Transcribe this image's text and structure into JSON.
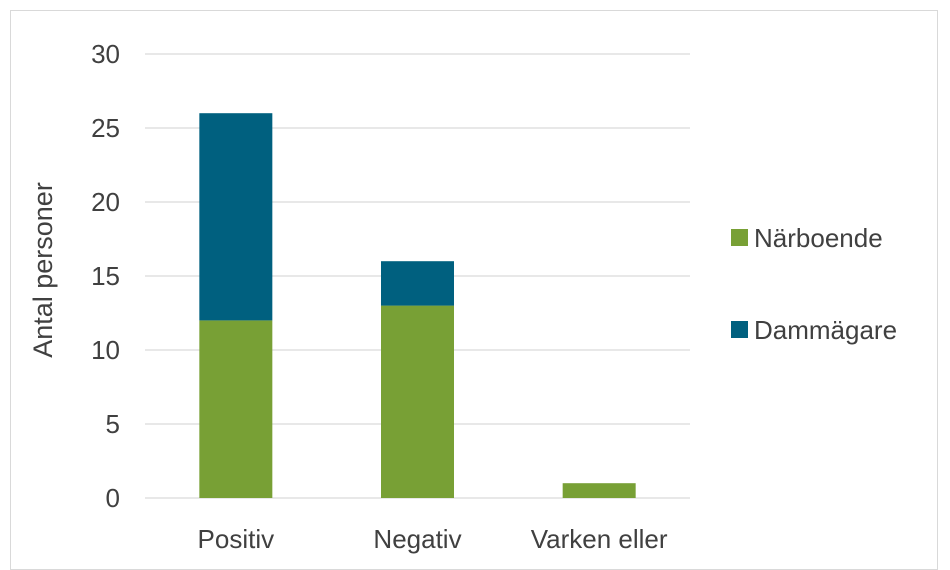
{
  "chart_data": {
    "type": "bar",
    "stacked": true,
    "categories": [
      "Positiv",
      "Negativ",
      "Varken eller"
    ],
    "series": [
      {
        "name": "Närboende",
        "values": [
          12,
          13,
          1
        ],
        "color": "#78A035"
      },
      {
        "name": "Dammägare",
        "values": [
          14,
          3,
          0
        ],
        "color": "#00607F"
      }
    ],
    "ylabel": "Antal personer",
    "xlabel": "",
    "ylim": [
      0,
      30
    ],
    "yticks": [
      0,
      5,
      10,
      15,
      20,
      25,
      30
    ],
    "grid": true,
    "legend_position": "right"
  }
}
